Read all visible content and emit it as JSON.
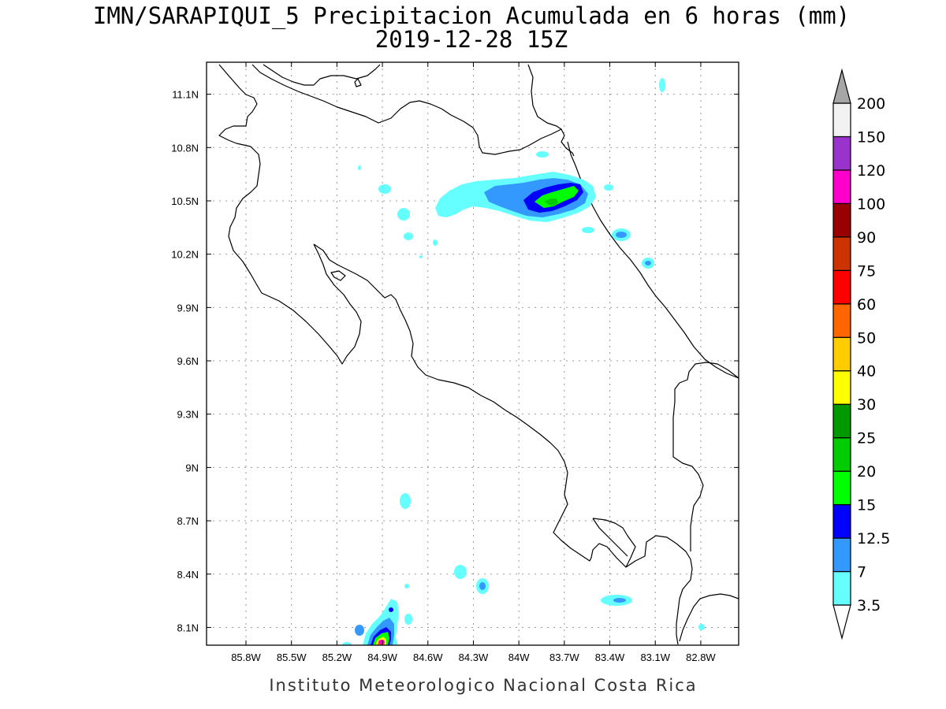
{
  "title": {
    "line1": "IMN/SARAPIQUI_5 Precipitacion Acumulada en 6 horas (mm)",
    "line2": "2019-12-28 15Z"
  },
  "footer": "Instituto Meteorologico Nacional Costa Rica",
  "map": {
    "lon_range": [
      -86.06,
      -82.55
    ],
    "lat_range": [
      8.0,
      11.28
    ],
    "grid": true,
    "lon_ticks": [
      {
        "value": -85.8,
        "label": "85.8W"
      },
      {
        "value": -85.5,
        "label": "85.5W"
      },
      {
        "value": -85.2,
        "label": "85.2W"
      },
      {
        "value": -84.9,
        "label": "84.9W"
      },
      {
        "value": -84.6,
        "label": "84.6W"
      },
      {
        "value": -84.3,
        "label": "84.3W"
      },
      {
        "value": -84.0,
        "label": "84W"
      },
      {
        "value": -83.7,
        "label": "83.7W"
      },
      {
        "value": -83.4,
        "label": "83.4W"
      },
      {
        "value": -83.1,
        "label": "83.1W"
      },
      {
        "value": -82.8,
        "label": "82.8W"
      }
    ],
    "lat_ticks": [
      {
        "value": 11.1,
        "label": "11.1N"
      },
      {
        "value": 10.8,
        "label": "10.8N"
      },
      {
        "value": 10.5,
        "label": "10.5N"
      },
      {
        "value": 10.2,
        "label": "10.2N"
      },
      {
        "value": 9.9,
        "label": "9.9N"
      },
      {
        "value": 9.6,
        "label": "9.6N"
      },
      {
        "value": 9.3,
        "label": "9.3N"
      },
      {
        "value": 9.0,
        "label": "9N"
      },
      {
        "value": 8.7,
        "label": "8.7N"
      },
      {
        "value": 8.4,
        "label": "8.4N"
      },
      {
        "value": 8.1,
        "label": "8.1N"
      }
    ]
  },
  "colorbar": {
    "levels": [
      {
        "label": "3.5",
        "color": "#66ffff"
      },
      {
        "label": "7",
        "color": "#3399ff"
      },
      {
        "label": "12.5",
        "color": "#0000ff"
      },
      {
        "label": "15",
        "color": "#00ff00"
      },
      {
        "label": "20",
        "color": "#00cc00"
      },
      {
        "label": "25",
        "color": "#009900"
      },
      {
        "label": "30",
        "color": "#ffff00"
      },
      {
        "label": "40",
        "color": "#ffcc00"
      },
      {
        "label": "50",
        "color": "#ff6600"
      },
      {
        "label": "60",
        "color": "#ff0000"
      },
      {
        "label": "75",
        "color": "#cc3300"
      },
      {
        "label": "90",
        "color": "#990000"
      },
      {
        "label": "100",
        "color": "#ff00cc"
      },
      {
        "label": "120",
        "color": "#9933cc"
      },
      {
        "label": "150",
        "color": "#f2f2f2"
      },
      {
        "label": "200",
        "color": "#a6a6a6"
      }
    ]
  }
}
